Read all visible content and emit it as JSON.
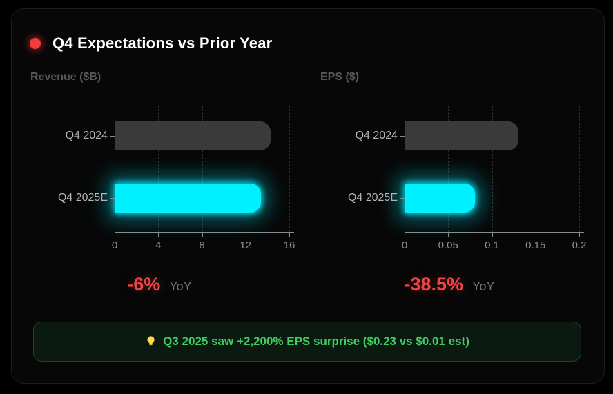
{
  "header": {
    "title": "Q4 Expectations vs Prior Year"
  },
  "chart_data": [
    {
      "type": "bar",
      "orientation": "horizontal",
      "title": "Revenue ($B)",
      "categories": [
        "Q4 2024",
        "Q4 2025E"
      ],
      "values": [
        14.2,
        13.35
      ],
      "bar_styles": [
        "prior",
        "estimate"
      ],
      "xlim": [
        0,
        16
      ],
      "ticks": [
        0,
        4,
        8,
        12,
        16
      ],
      "tick_labels": [
        "0",
        "4",
        "8",
        "12",
        "16"
      ],
      "grid": "dashed-vertical",
      "legend": "none",
      "annotation": {
        "value": "-6%",
        "label": "YoY"
      }
    },
    {
      "type": "bar",
      "orientation": "horizontal",
      "title": "EPS ($)",
      "categories": [
        "Q4 2024",
        "Q4 2025E"
      ],
      "values": [
        0.13,
        0.08
      ],
      "bar_styles": [
        "prior",
        "estimate"
      ],
      "xlim": [
        0,
        0.2
      ],
      "ticks": [
        0,
        0.05,
        0.1,
        0.15,
        0.2
      ],
      "tick_labels": [
        "0",
        "0.05",
        "0.1",
        "0.15",
        "0.2"
      ],
      "grid": "dashed-vertical",
      "legend": "none",
      "annotation": {
        "value": "-38.5%",
        "label": "YoY"
      }
    }
  ],
  "callout": {
    "icon": "lightbulb-icon",
    "text": "Q3 2025 saw +2,200% EPS surprise ($0.23 vs $0.01 est)"
  },
  "colors": {
    "page_bg": "#000000",
    "card_bg": "#070707",
    "card_border": "#1f1f1f",
    "bullet_red": "#f43b3b",
    "title_text": "#ffffff",
    "section_label": "#595959",
    "category_label": "#b5b5b5",
    "tick_label": "#8f8f8f",
    "axis_line": "#8b8b8b",
    "gridline": "#2e2e2e",
    "prior_bar": "#3a3a3a",
    "estimate_bar": "#00f0ff",
    "negative_red": "#ef4444",
    "yoy_label": "#757575",
    "callout_bg": "#0b1a10",
    "callout_border": "#1e4430",
    "callout_text": "#3fce62"
  }
}
